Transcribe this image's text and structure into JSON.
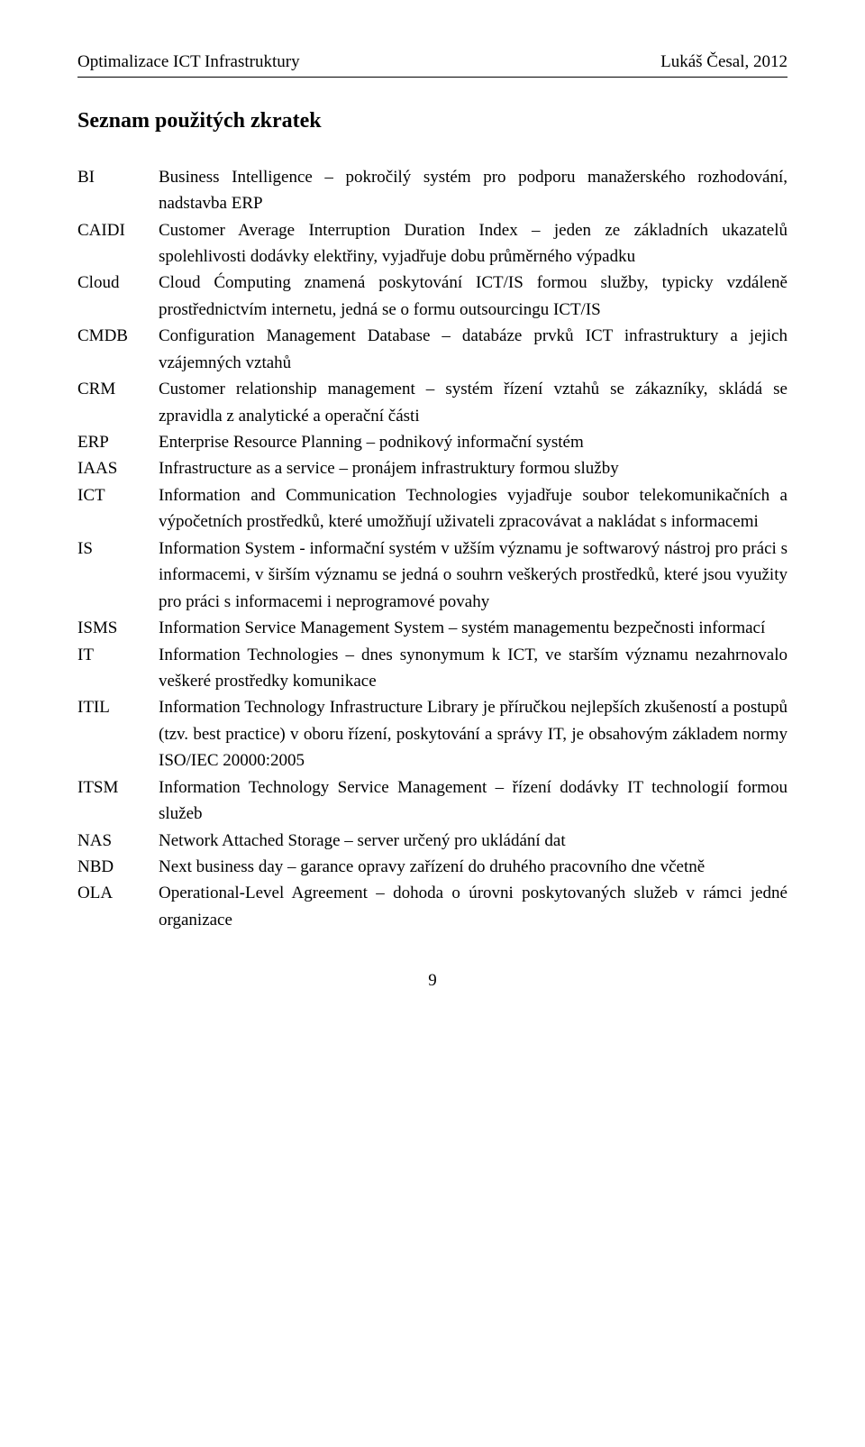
{
  "header_left": "Optimalizace ICT Infrastruktury",
  "header_right": "Lukáš Česal, 2012",
  "section_title": "Seznam použitých zkratek",
  "page_number": "9",
  "abbreviations": [
    {
      "term": "BI",
      "def": "Business Intelligence – pokročilý systém pro podporu manažerského rozhodování, nadstavba ERP"
    },
    {
      "term": "CAIDI",
      "def": "Customer Average Interruption Duration Index – jeden ze základních ukazatelů spolehlivosti dodávky elektřiny, vyjadřuje dobu průměrného výpadku"
    },
    {
      "term": "Cloud",
      "def": "Cloud Ćomputing znamená poskytování ICT/IS formou služby, typicky vzdáleně prostřednictvím internetu, jedná se o formu outsourcingu ICT/IS"
    },
    {
      "term": "CMDB",
      "def": "Configuration Management Database – databáze prvků ICT infrastruktury a jejich vzájemných vztahů"
    },
    {
      "term": "CRM",
      "def": "Customer relationship management – systém řízení vztahů se zákazníky, skládá se zpravidla z analytické a operační části"
    },
    {
      "term": "ERP",
      "def": "Enterprise Resource Planning – podnikový informační systém"
    },
    {
      "term": "IAAS",
      "def": "Infrastructure as a service – pronájem infrastruktury formou služby"
    },
    {
      "term": "ICT",
      "def": "Information and Communication Technologies vyjadřuje soubor telekomunikačních a výpočetních prostředků, které umožňují uživateli zpracovávat a nakládat s informacemi"
    },
    {
      "term": "IS",
      "def": "Information System - informační systém v užším významu je softwarový nástroj pro práci s informacemi, v širším významu se jedná o souhrn veškerých prostředků, které jsou využity pro práci s informacemi i neprogramové povahy"
    },
    {
      "term": "ISMS",
      "def": "Information Service Management System – systém managementu bezpečnosti informací"
    },
    {
      "term": "IT",
      "def": "Information Technologies – dnes synonymum k ICT, ve starším významu nezahrnovalo veškeré prostředky komunikace"
    },
    {
      "term": "ITIL",
      "def": "Information Technology Infrastructure Library je příručkou nejlepších zkušeností a postupů (tzv. best practice) v oboru řízení, poskytování a správy IT, je obsahovým základem normy ISO/IEC 20000:2005"
    },
    {
      "term": "ITSM",
      "def": "Information Technology Service Management – řízení dodávky IT technologií formou služeb"
    },
    {
      "term": "NAS",
      "def": "Network Attached Storage – server určený pro ukládání dat"
    },
    {
      "term": "NBD",
      "def": "Next business day – garance opravy zařízení do druhého pracovního dne včetně"
    },
    {
      "term": "OLA",
      "def": "Operational-Level Agreement – dohoda o úrovni poskytovaných služeb v rámci jedné organizace"
    }
  ]
}
